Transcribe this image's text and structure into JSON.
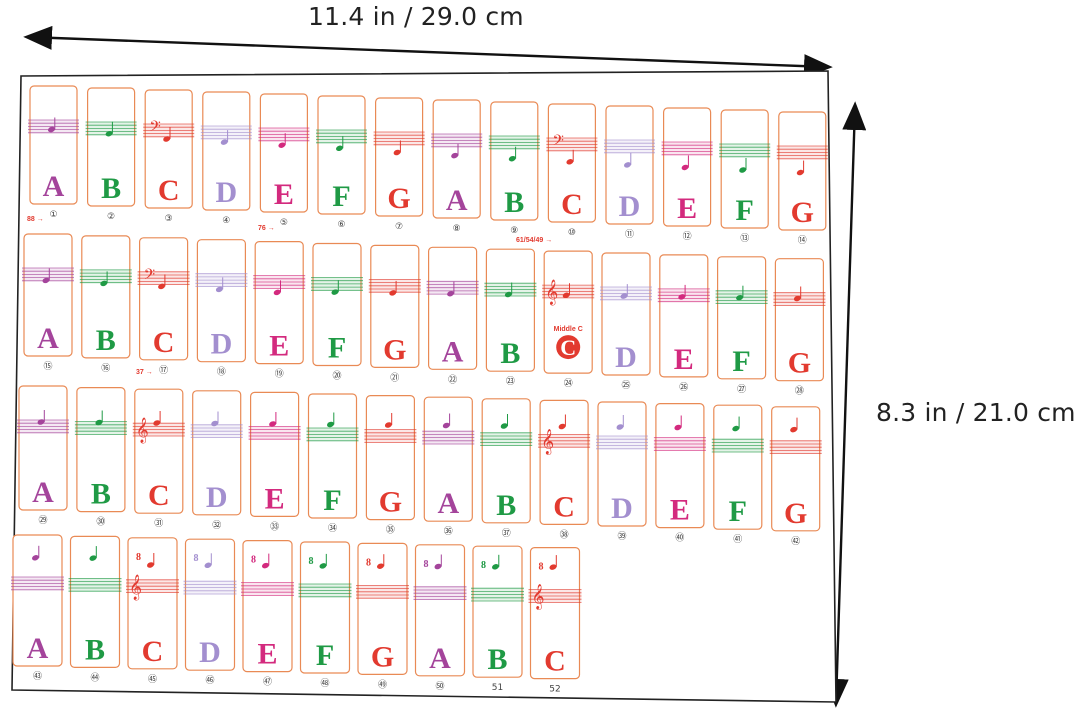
{
  "dimensions": {
    "width_label": "11.4 in / 29.0 cm",
    "height_label": "8.3 in / 21.0 cm"
  },
  "colors": {
    "A": "#a4449b",
    "B": "#1f9a45",
    "C": "#e23a2f",
    "D": "#a38fcf",
    "E": "#d32a7e",
    "F": "#1f9a45",
    "G": "#e23a2f",
    "card_border": "#e98a55",
    "sheet_border": "#222222"
  },
  "rows": [
    {
      "letters": [
        "A",
        "B",
        "C",
        "D",
        "E",
        "F",
        "G",
        "A",
        "B",
        "C",
        "D",
        "E",
        "F",
        "G"
      ],
      "numbers": [
        "①",
        "②",
        "③",
        "④",
        "⑤",
        "⑥",
        "⑦",
        "⑧",
        "⑨",
        "⑩",
        "⑪",
        "⑫",
        "⑬",
        "⑭"
      ],
      "clef_bass_index": [
        2,
        9
      ]
    },
    {
      "letters": [
        "A",
        "B",
        "C",
        "D",
        "E",
        "F",
        "G",
        "A",
        "B",
        "C",
        "D",
        "E",
        "F",
        "G"
      ],
      "numbers": [
        "⑮",
        "⑯",
        "⑰",
        "⑱",
        "⑲",
        "⑳",
        "㉑",
        "㉒",
        "㉓",
        "㉔",
        "㉕",
        "㉖",
        "㉗",
        "㉘"
      ],
      "clef_bass_index": [
        2
      ],
      "clef_treble_index": [
        9
      ]
    },
    {
      "letters": [
        "A",
        "B",
        "C",
        "D",
        "E",
        "F",
        "G",
        "A",
        "B",
        "C",
        "D",
        "E",
        "F",
        "G"
      ],
      "numbers": [
        "㉙",
        "㉚",
        "㉛",
        "㉜",
        "㉝",
        "㉞",
        "㉟",
        "㊱",
        "㊲",
        "㊳",
        "㊴",
        "㊵",
        "㊶",
        "㊷"
      ],
      "clef_treble_index": [
        2,
        9
      ]
    },
    {
      "letters": [
        "A",
        "B",
        "C",
        "D",
        "E",
        "F",
        "G",
        "A",
        "B",
        "C"
      ],
      "numbers": [
        "㊸",
        "㊹",
        "㊺",
        "㊻",
        "㊼",
        "㊽",
        "㊾",
        "㊿",
        "51",
        "52"
      ],
      "clef_treble_index": [
        2,
        9
      ]
    }
  ],
  "annotations": {
    "key88": "88",
    "key76": "76",
    "key61": "61/54/49",
    "key37": "37",
    "middle_c": "Middle C",
    "ottava": "8"
  }
}
